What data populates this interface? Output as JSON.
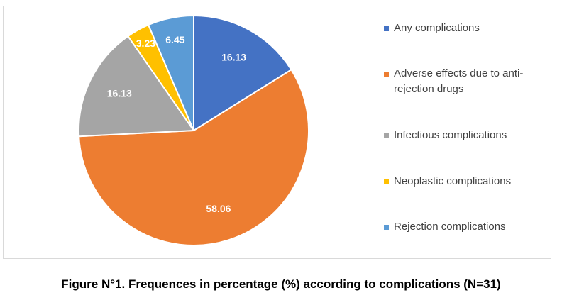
{
  "chart_data": {
    "type": "pie",
    "title": "",
    "slices": [
      {
        "label": "Any complications",
        "value": 16.13,
        "display": "16.13",
        "color": "#4472C4"
      },
      {
        "label": "Adverse effects due to anti-rejection drugs",
        "value": 58.06,
        "display": "58.06",
        "color": "#ED7D31"
      },
      {
        "label": "Infectious complications",
        "value": 16.13,
        "display": "16.13",
        "color": "#A5A5A5"
      },
      {
        "label": "Neoplastic complications",
        "value": 3.23,
        "display": "3.23",
        "color": "#FFC000"
      },
      {
        "label": "Rejection complications",
        "value": 6.45,
        "display": "6.45",
        "color": "#5B9BD5"
      }
    ],
    "legend_position": "right",
    "start_angle": "12 o'clock, clockwise"
  },
  "legend": {
    "items": [
      {
        "label": "Any complications",
        "color": "#4472C4"
      },
      {
        "label": "Adverse effects due to anti-rejection drugs",
        "color": "#ED7D31"
      },
      {
        "label": "Infectious complications",
        "color": "#A5A5A5"
      },
      {
        "label": "Neoplastic complications",
        "color": "#FFC000"
      },
      {
        "label": "Rejection complications",
        "color": "#5B9BD5"
      }
    ]
  },
  "caption": "Figure N°1. Frequences in percentage (%) according to complications (N=31)"
}
